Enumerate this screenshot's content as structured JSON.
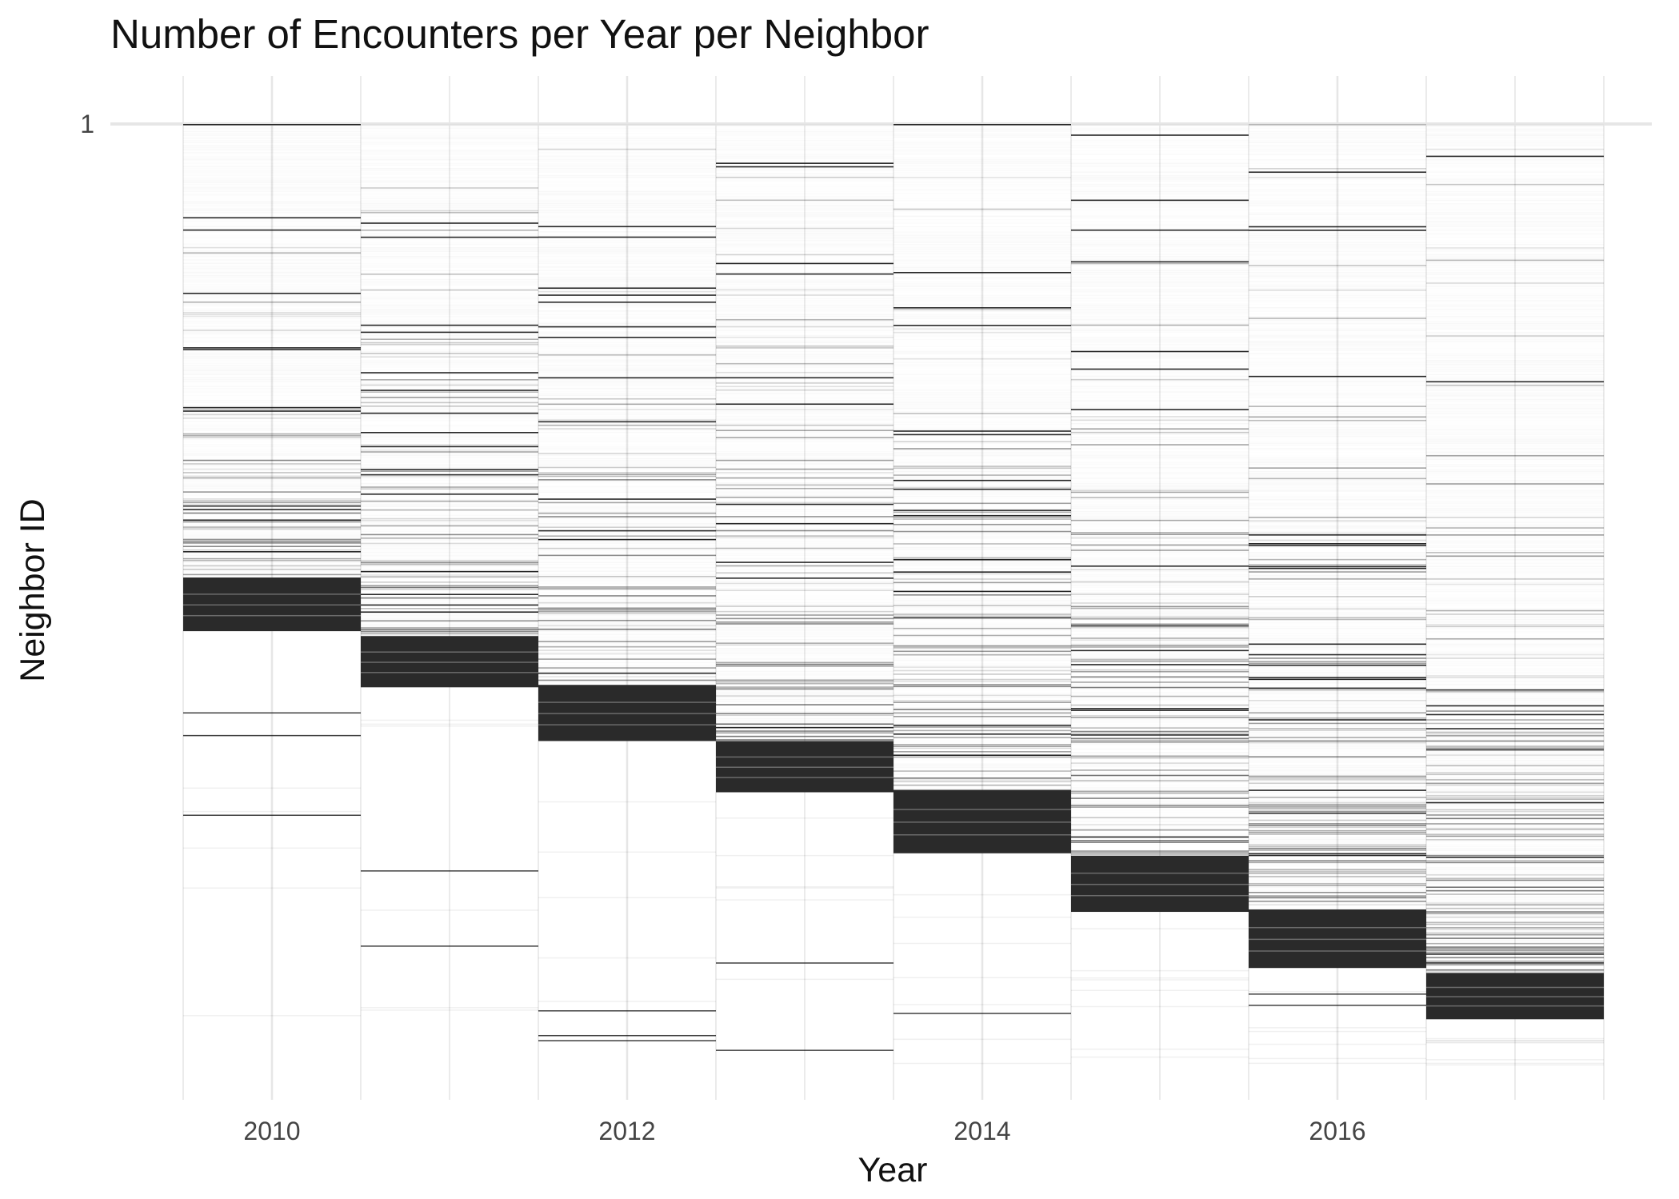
{
  "chart_data": {
    "type": "heatmap",
    "title": "Number of Encounters per Year per Neighbor",
    "xlabel": "Year",
    "ylabel": "Neighbor ID",
    "x_ticks": [
      "2010",
      "2012",
      "2014",
      "2016"
    ],
    "x_tick_values": [
      2010,
      2012,
      2014,
      2016
    ],
    "y_ticks": [
      "1"
    ],
    "y_tick_values": [
      1
    ],
    "years": [
      2010,
      2011,
      2012,
      2013,
      2014,
      2015,
      2016,
      2017
    ],
    "xlim": [
      2009.3,
      2017.8
    ],
    "ylim": [
      1,
      2000
    ],
    "grid": true,
    "legend": "none",
    "colors": {
      "dense": "#2a2a2a",
      "sparse": "#cccccc",
      "grid": "#e6e6e6"
    },
    "columns": [
      {
        "year": 2010,
        "dense_from": 930,
        "dense_to": 1040
      },
      {
        "year": 2011,
        "dense_from": 1050,
        "dense_to": 1155
      },
      {
        "year": 2012,
        "dense_from": 1150,
        "dense_to": 1265
      },
      {
        "year": 2013,
        "dense_from": 1265,
        "dense_to": 1370
      },
      {
        "year": 2014,
        "dense_from": 1365,
        "dense_to": 1495
      },
      {
        "year": 2015,
        "dense_from": 1500,
        "dense_to": 1615
      },
      {
        "year": 2016,
        "dense_from": 1610,
        "dense_to": 1730
      },
      {
        "year": 2017,
        "dense_from": 1740,
        "dense_to": 1835
      }
    ]
  }
}
